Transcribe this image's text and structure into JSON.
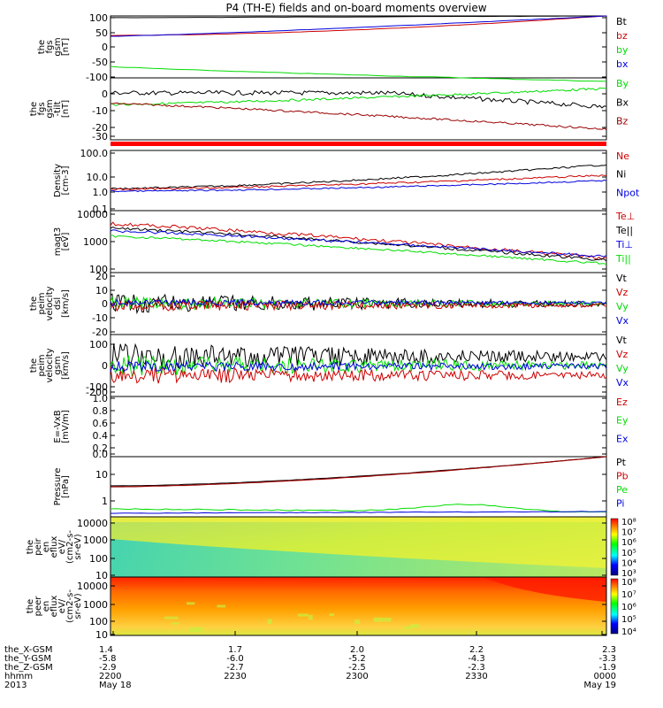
{
  "title": "P4 (TH-E) fields and on-board moments overview",
  "colors": {
    "black": "#000000",
    "red": "#cc0000",
    "green": "#00dd00",
    "blue": "#0000dd",
    "darkred": "#990000",
    "bar": "#ff0000"
  },
  "panels": [
    {
      "id": "fgs-dsl",
      "ylabel": [
        "the",
        "fgs",
        "gsm",
        "[nT]"
      ],
      "ticks": [
        "100",
        "50",
        "0",
        "-50",
        "-100"
      ],
      "legend": [
        [
          "Bt",
          "black"
        ],
        [
          "bz",
          "red"
        ],
        [
          "by",
          "green"
        ],
        [
          "bx",
          "blue"
        ]
      ]
    },
    {
      "id": "fgs-gsm",
      "ylabel": [
        "the",
        "fgs",
        "gsm",
        "-tilt",
        "[nT]"
      ],
      "ticks": [
        "0",
        "-10",
        "-20",
        "-30"
      ],
      "legend": [
        [
          "By",
          "green"
        ],
        [
          "Bx",
          "black"
        ],
        [
          "Bz",
          "darkred"
        ]
      ]
    },
    {
      "id": "density",
      "ylabel": [
        "Density",
        "[cm-3]"
      ],
      "ticks": [
        "100.0",
        "10.0",
        "1.0",
        "0.1"
      ],
      "legend": [
        [
          "Ne",
          "red"
        ],
        [
          "Ni",
          "black"
        ],
        [
          "Npot",
          "blue"
        ]
      ]
    },
    {
      "id": "temperature",
      "ylabel": [
        "magt3",
        "[eV]"
      ],
      "ticks": [
        "10000",
        "1000",
        "100"
      ],
      "legend": [
        [
          "Te⊥",
          "red"
        ],
        [
          "Te||",
          "black"
        ],
        [
          "Ti⊥",
          "blue"
        ],
        [
          "Ti||",
          "green"
        ]
      ]
    },
    {
      "id": "velocity-dsl",
      "ylabel": [
        "the",
        "peim",
        "velocity",
        "dsl",
        "[km/s]"
      ],
      "ticks": [
        "20",
        "10",
        "0",
        "-10",
        "-20"
      ],
      "legend": [
        [
          "Vt",
          "black"
        ],
        [
          "Vz",
          "red"
        ],
        [
          "Vy",
          "green"
        ],
        [
          "Vx",
          "blue"
        ]
      ]
    },
    {
      "id": "velocity-gsm",
      "ylabel": [
        "the",
        "peim",
        "velocity",
        "gsm",
        "[km/s]"
      ],
      "ticks": [
        "100",
        "0",
        "-100",
        "-200"
      ],
      "legend": [
        [
          "Vt",
          "black"
        ],
        [
          "Vz",
          "red"
        ],
        [
          "Vy",
          "green"
        ],
        [
          "Vx",
          "blue"
        ]
      ]
    },
    {
      "id": "efield",
      "ylabel": [
        "E=-VxB",
        "[mV/m]"
      ],
      "ticks": [
        "1.0",
        "0.8",
        "0.6",
        "0.4",
        "0.2",
        "0.0"
      ],
      "legend": [
        [
          "Ez",
          "red"
        ],
        [
          "Ey",
          "green"
        ],
        [
          "Ex",
          "blue"
        ]
      ]
    },
    {
      "id": "pressure",
      "ylabel": [
        "Pressure",
        "[nPa]"
      ],
      "ticks": [
        "10",
        "1"
      ],
      "legend": [
        [
          "Pt",
          "black"
        ],
        [
          "Pb",
          "red"
        ],
        [
          "Pe",
          "green"
        ],
        [
          "Pi",
          "blue"
        ]
      ]
    },
    {
      "id": "ion-spec",
      "ylabel": [
        "the",
        "peir",
        "en",
        "eflux",
        "eV/",
        "(cm2-s-",
        "sr-eV)"
      ],
      "ticks": [
        "10000",
        "1000",
        "100",
        "10"
      ],
      "cbar": [
        "10⁸",
        "10⁷",
        "10⁶",
        "10⁵",
        "10⁴",
        "10³"
      ]
    },
    {
      "id": "elec-spec",
      "ylabel": [
        "the",
        "peer",
        "en",
        "eflux",
        "eV/",
        "(cm2-s-",
        "sr-eV)"
      ],
      "ticks": [
        "10000",
        "1000",
        "100",
        "10"
      ],
      "cbar": [
        "10⁸",
        "10⁷",
        "10⁶",
        "10⁵",
        "10⁴"
      ]
    }
  ],
  "xaxis": {
    "rows": [
      {
        "label": "the_X-GSM",
        "values": [
          "1.4",
          "1.7",
          "2.0",
          "2.2",
          "2.3"
        ]
      },
      {
        "label": "the_Y-GSM",
        "values": [
          "-5.8",
          "-6.0",
          "-5.2",
          "-4.3",
          "-3.3"
        ]
      },
      {
        "label": "the_Z-GSM",
        "values": [
          "-2.9",
          "-2.7",
          "-2.5",
          "-2.3",
          "-1.9"
        ]
      },
      {
        "label": "hhmm",
        "values": [
          "2200",
          "2230",
          "2300",
          "2330",
          "0000"
        ]
      },
      {
        "label": "2013",
        "values": [
          "May 18",
          "",
          "",
          "",
          "May 19"
        ]
      }
    ]
  },
  "chart_data": {
    "type": "line",
    "title": "P4 (TH-E) fields and on-board moments overview",
    "x_ticks": [
      "2200",
      "2230",
      "2300",
      "2330",
      "0000"
    ],
    "series": [
      {
        "panel": "fgs-dsl",
        "name": "Bt",
        "start": 100,
        "end": 160
      },
      {
        "panel": "fgs-dsl",
        "name": "bz",
        "start": 38,
        "end": 110
      },
      {
        "panel": "fgs-dsl",
        "name": "bx",
        "start": 40,
        "end": 160
      },
      {
        "panel": "fgs-dsl",
        "name": "by",
        "start": -75,
        "end": -110
      },
      {
        "panel": "fgs-gsm",
        "name": "Bx",
        "start": -2,
        "end": -12
      },
      {
        "panel": "fgs-gsm",
        "name": "By",
        "start": -8,
        "end": 2
      },
      {
        "panel": "fgs-gsm",
        "name": "Bz",
        "start": -8,
        "end": -28
      },
      {
        "panel": "density",
        "name": "Ni",
        "start": 1.2,
        "end": 20
      },
      {
        "panel": "density",
        "name": "Ne",
        "start": 1.2,
        "end": 8
      },
      {
        "panel": "density",
        "name": "Npot",
        "start": 1.0,
        "end": 4
      },
      {
        "panel": "temperature",
        "name": "Te⊥",
        "start": 5000,
        "end": 300
      },
      {
        "panel": "temperature",
        "name": "Te||",
        "start": 3500,
        "end": 250
      },
      {
        "panel": "temperature",
        "name": "Ti⊥",
        "start": 3000,
        "end": 350
      },
      {
        "panel": "temperature",
        "name": "Ti||",
        "start": 2000,
        "end": 220
      },
      {
        "panel": "pressure",
        "name": "Pt",
        "start": 3,
        "end": 100
      },
      {
        "panel": "pressure",
        "name": "Pb",
        "start": 3,
        "end": 100
      },
      {
        "panel": "pressure",
        "name": "Pe",
        "start": 0.45,
        "end": 0.2
      },
      {
        "panel": "pressure",
        "name": "Pi",
        "start": 0.22,
        "end": 0.25
      }
    ]
  }
}
